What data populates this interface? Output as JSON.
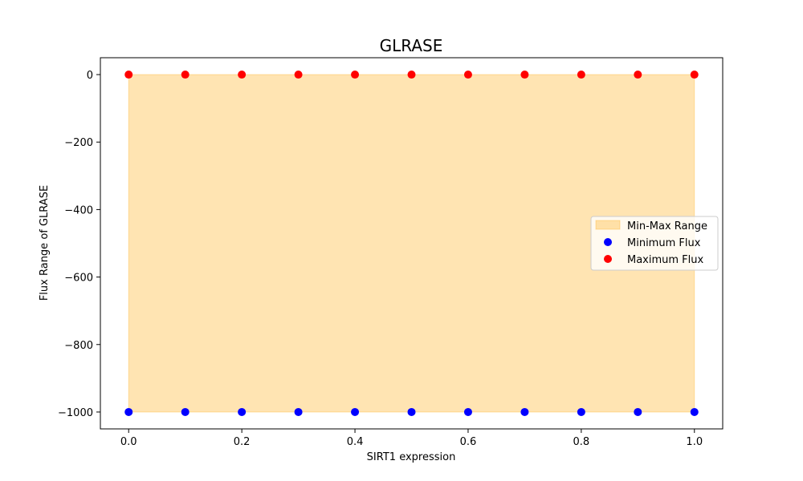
{
  "chart_data": {
    "type": "scatter",
    "title": "GLRASE",
    "xlabel": "SIRT1 expression",
    "ylabel": "Flux Range of GLRASE",
    "x": [
      0.0,
      0.1,
      0.2,
      0.3,
      0.4,
      0.5,
      0.6,
      0.7,
      0.8,
      0.9,
      1.0
    ],
    "series": [
      {
        "name": "Minimum Flux",
        "kind": "scatter",
        "color": "#0000ff",
        "values": [
          -1000,
          -1000,
          -1000,
          -1000,
          -1000,
          -1000,
          -1000,
          -1000,
          -1000,
          -1000,
          -1000
        ]
      },
      {
        "name": "Maximum Flux",
        "kind": "scatter",
        "color": "#ff0000",
        "values": [
          0,
          0,
          0,
          0,
          0,
          0,
          0,
          0,
          0,
          0,
          0
        ]
      }
    ],
    "range_fill": {
      "name": "Min-Max Range",
      "color": "#ffa500",
      "opacity": 0.3,
      "lower": "Minimum Flux",
      "upper": "Maximum Flux"
    },
    "xlim": [
      -0.05,
      1.05
    ],
    "ylim": [
      -1050,
      50
    ],
    "xticks": [
      0.0,
      0.2,
      0.4,
      0.6,
      0.8,
      1.0
    ],
    "xtick_labels": [
      "0.0",
      "0.2",
      "0.4",
      "0.6",
      "0.8",
      "1.0"
    ],
    "yticks": [
      0,
      -200,
      -400,
      -600,
      -800,
      -1000
    ],
    "ytick_labels": [
      "0",
      "−200",
      "−400",
      "−600",
      "−800",
      "−1000"
    ],
    "grid": false,
    "legend_position": "center-right"
  }
}
